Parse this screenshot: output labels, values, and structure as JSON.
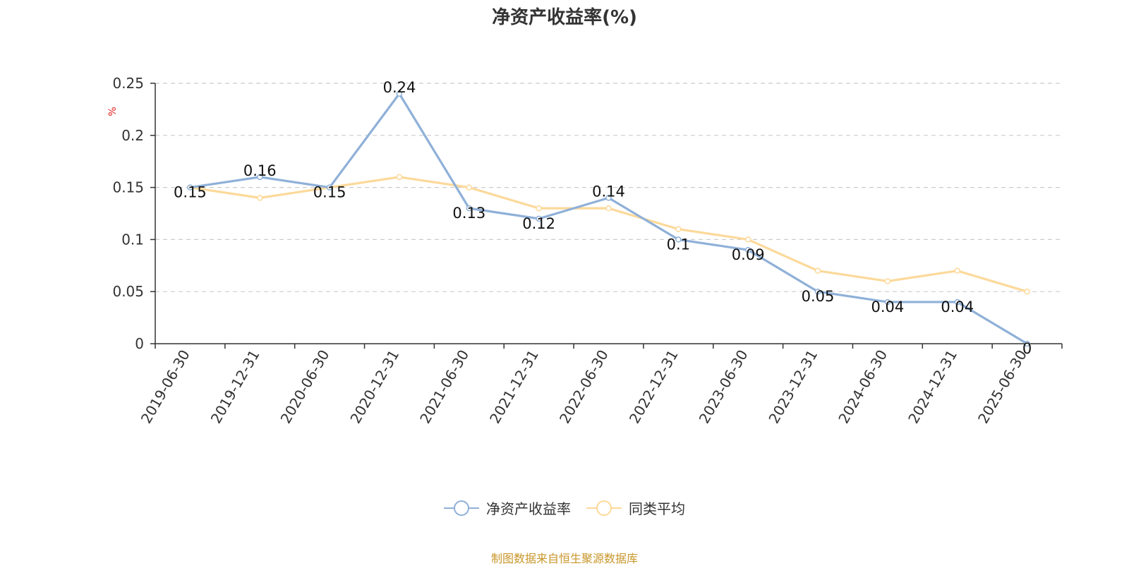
{
  "chart_data": {
    "type": "line",
    "title": "净资产收益率(%)",
    "ylabel": "%",
    "xlabel": "",
    "ylim": [
      0,
      0.25
    ],
    "yticks": [
      "0",
      "0.05",
      "0.1",
      "0.15",
      "0.2",
      "0.25"
    ],
    "grid": true,
    "legend_position": "bottom",
    "categories": [
      "2019-06-30",
      "2019-12-31",
      "2020-06-30",
      "2020-12-31",
      "2021-06-30",
      "2021-12-31",
      "2022-06-30",
      "2022-12-31",
      "2023-06-30",
      "2023-12-31",
      "2024-06-30",
      "2024-12-31",
      "2025-06-30"
    ],
    "series": [
      {
        "name": "净资产收益率",
        "color": "#8fb0d8",
        "values": [
          0.15,
          0.16,
          0.15,
          0.24,
          0.13,
          0.12,
          0.14,
          0.1,
          0.09,
          0.05,
          0.04,
          0.04,
          0
        ],
        "labels": [
          "0.15",
          "0.16",
          "0.15",
          "0.24",
          "0.13",
          "0.12",
          "0.14",
          "0.1",
          "0.09",
          "0.05",
          "0.04",
          "0.04",
          "0"
        ]
      },
      {
        "name": "同类平均",
        "color": "#fcd99a",
        "values": [
          0.15,
          0.14,
          0.15,
          0.16,
          0.15,
          0.13,
          0.13,
          0.11,
          0.1,
          0.07,
          0.06,
          0.07,
          0.05
        ]
      }
    ],
    "source": "制图数据来自恒生聚源数据库"
  }
}
